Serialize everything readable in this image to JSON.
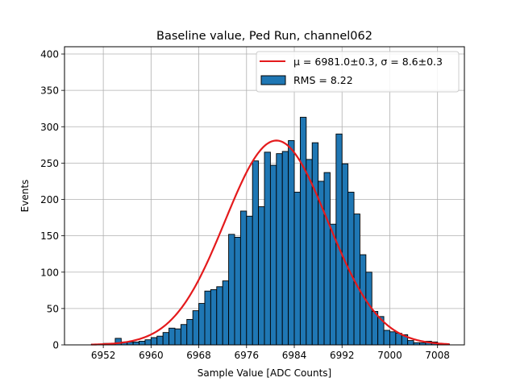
{
  "chart_data": {
    "type": "bar",
    "title": "Baseline value, Ped Run, channel062",
    "xlabel": "Sample Value [ADC Counts]",
    "ylabel": "Events",
    "xlim": [
      6945.5,
      7012.5
    ],
    "ylim": [
      0,
      410
    ],
    "x_ticks": [
      6952,
      6960,
      6968,
      6976,
      6984,
      6992,
      7000,
      7008
    ],
    "y_ticks": [
      0,
      50,
      100,
      150,
      200,
      250,
      300,
      350,
      400
    ],
    "grid": true,
    "legend_position": "top-right",
    "histogram": {
      "name": "RMS = 8.22",
      "color": "#1f77b4",
      "bin_start": 6950,
      "bin_width": 1,
      "counts": [
        1,
        1,
        2,
        2,
        9,
        4,
        4,
        4,
        5,
        7,
        10,
        12,
        17,
        23,
        22,
        28,
        35,
        47,
        57,
        74,
        76,
        80,
        88,
        152,
        148,
        184,
        177,
        253,
        190,
        265,
        247,
        263,
        266,
        281,
        210,
        313,
        255,
        278,
        225,
        237,
        166,
        290,
        249,
        210,
        180,
        124,
        100,
        46,
        39,
        20,
        18,
        16,
        14,
        6,
        3,
        3,
        5,
        4,
        1,
        1
      ]
    },
    "fit": {
      "name": "μ = 6981.0±0.3, σ = 8.6±0.3",
      "color": "#e41a1c",
      "mu": 6981.0,
      "sigma": 8.6,
      "peak": 281,
      "x_range": [
        6950,
        7010
      ]
    },
    "legend": [
      {
        "kind": "line",
        "label": "μ = 6981.0±0.3, σ = 8.6±0.3"
      },
      {
        "kind": "patch",
        "label": "RMS = 8.22"
      }
    ]
  }
}
